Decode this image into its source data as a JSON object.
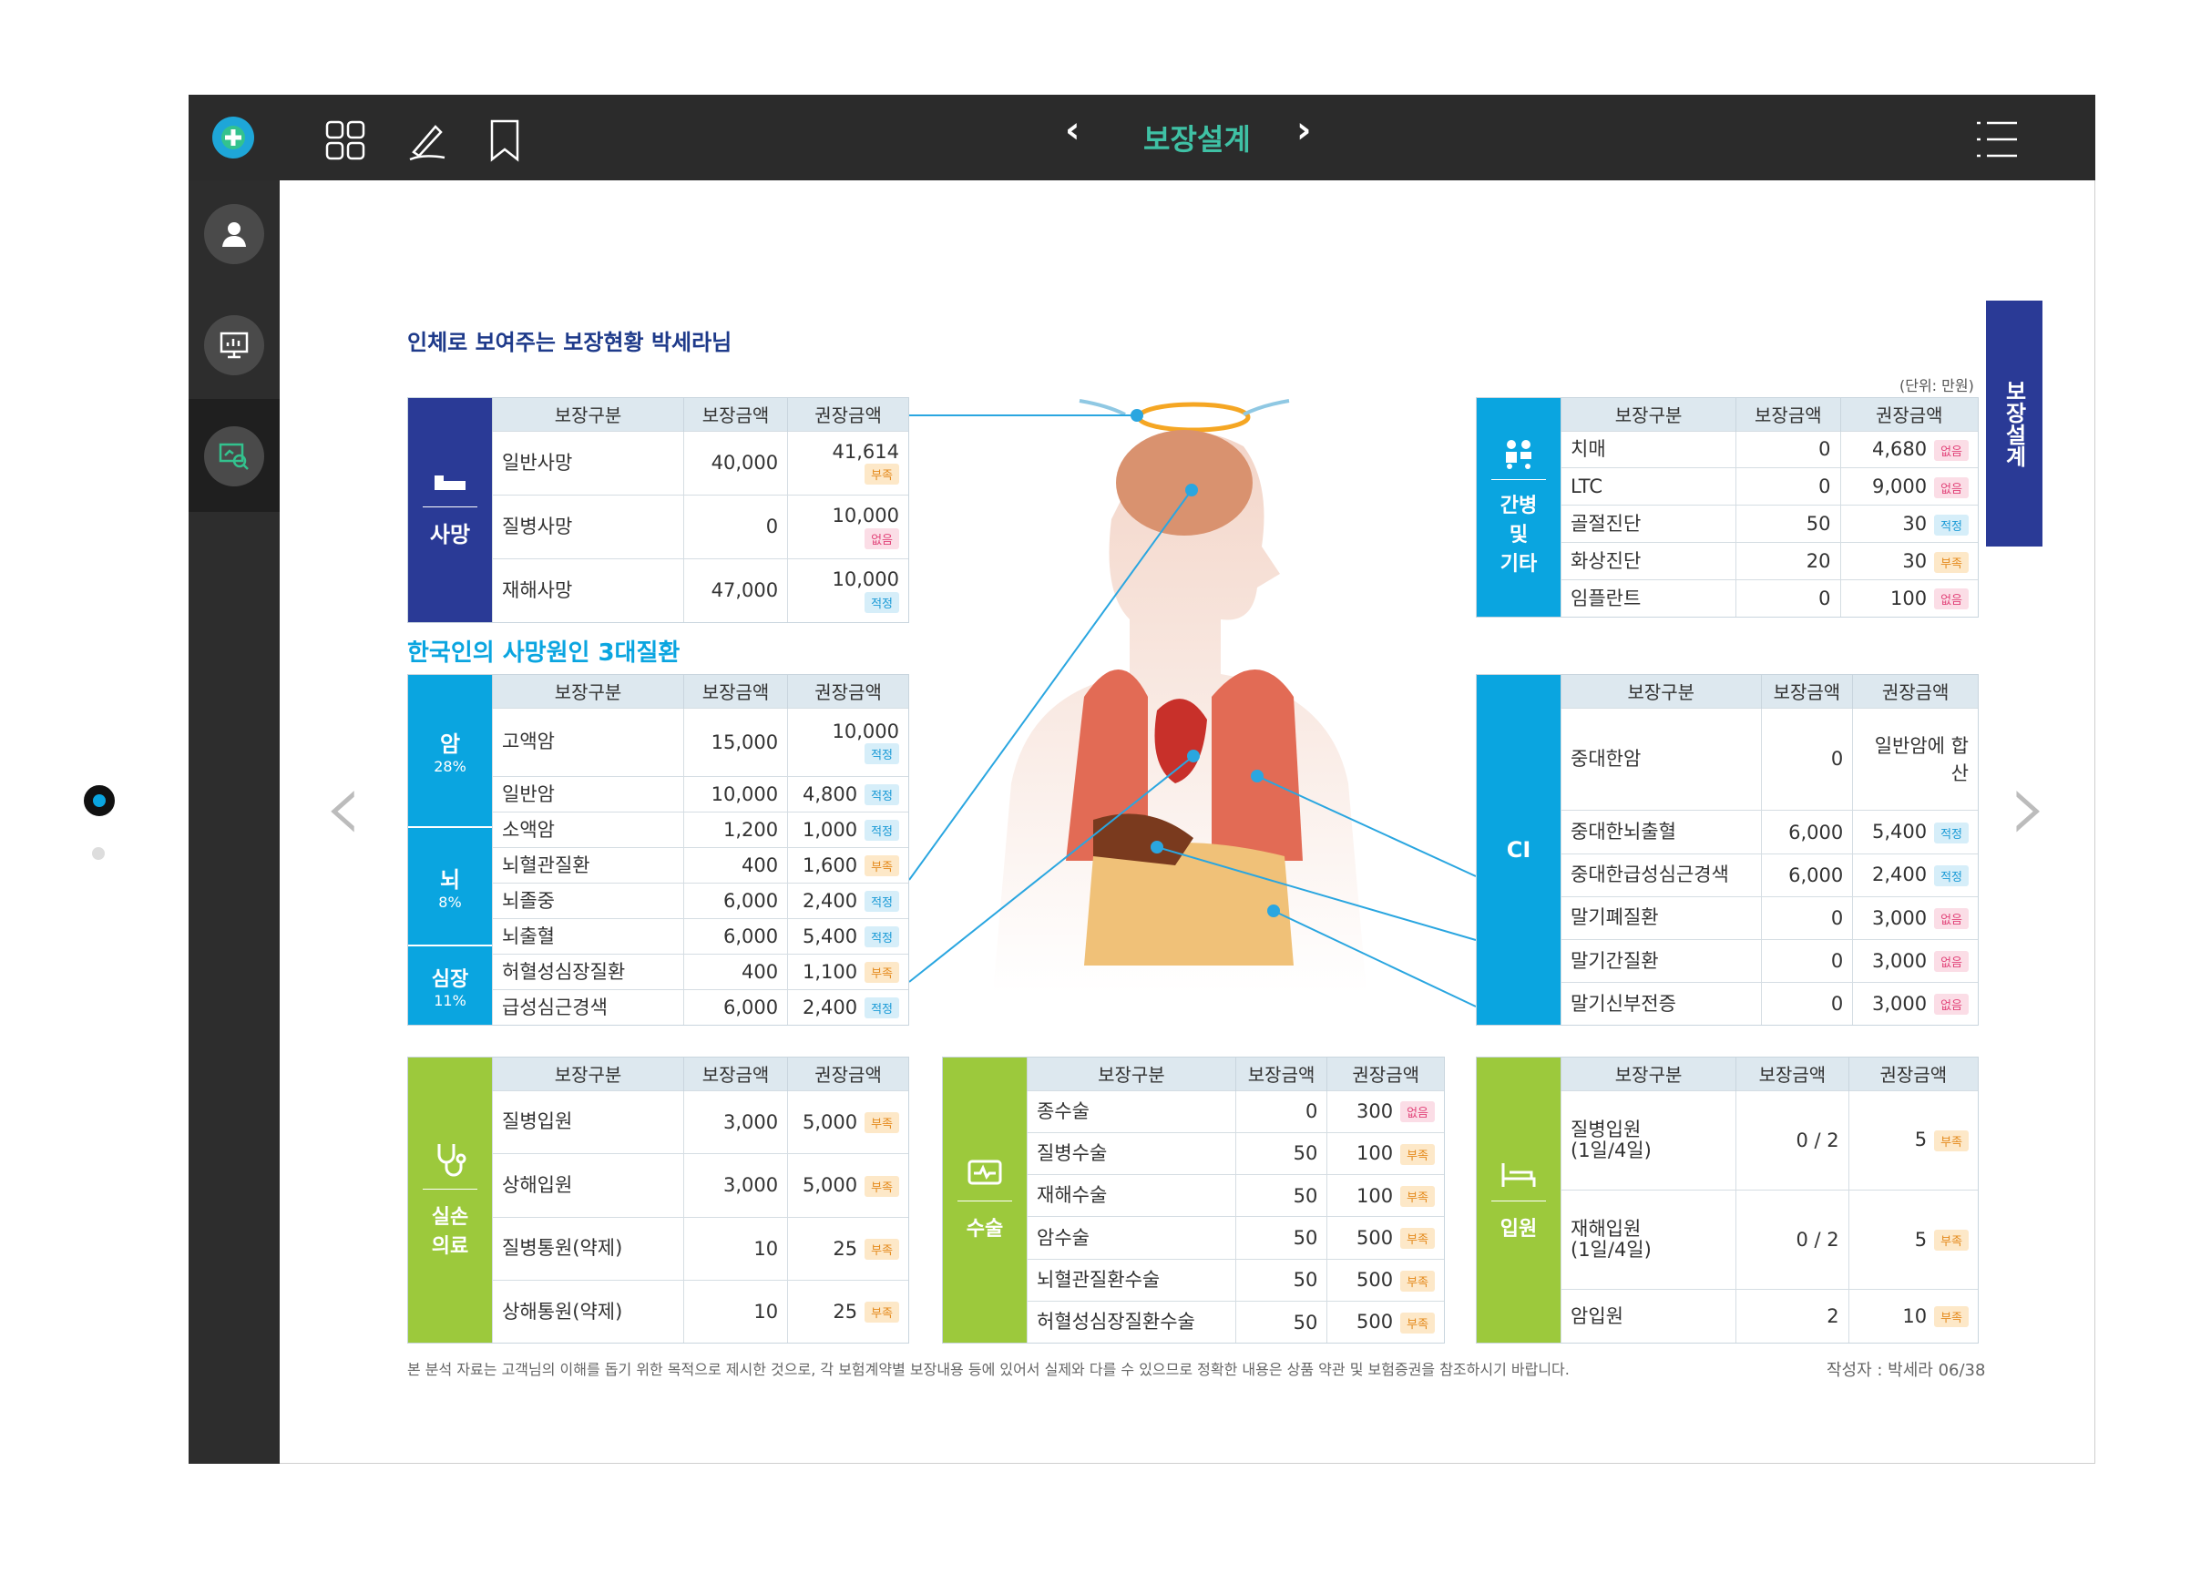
{
  "header": {
    "title": "보장설계"
  },
  "side_tab": "보장설계",
  "report": {
    "title": "인체로 보여주는 보장현황 박세라님",
    "section_title": "한국인의 사망원인 3대질환",
    "unit": "(단위: 만원)",
    "footnote": "본 분석 자료는 고객님의 이해를 돕기 위한 목적으로 제시한 것으로, 각 보험계약별 보장내용 등에 있어서 실제와 다를 수 있으므로 정확한 내용은 상품 약관 및 보험증권을 참조하시기 바랍니다.",
    "author": "작성자 : 박세라 06/38",
    "columns": [
      "보장구분",
      "보장금액",
      "권장금액"
    ],
    "badges": {
      "ok": "적정",
      "lack": "부족",
      "none": "없음"
    }
  },
  "death": {
    "label": "사망",
    "rows": [
      {
        "name": "일반사망",
        "amount": "40,000",
        "rec": "41,614",
        "badge": "부족"
      },
      {
        "name": "질병사망",
        "amount": "0",
        "rec": "10,000",
        "badge": "없음"
      },
      {
        "name": "재해사망",
        "amount": "47,000",
        "rec": "10,000",
        "badge": "적정"
      }
    ]
  },
  "disease": {
    "groups": [
      {
        "label": "암",
        "pct": "28%"
      },
      {
        "label": "뇌",
        "pct": "8%"
      },
      {
        "label": "심장",
        "pct": "11%"
      }
    ],
    "rows": [
      {
        "name": "고액암",
        "amount": "15,000",
        "rec": "10,000",
        "badge": "적정"
      },
      {
        "name": "일반암",
        "amount": "10,000",
        "rec": "4,800",
        "badge": "적정"
      },
      {
        "name": "소액암",
        "amount": "1,200",
        "rec": "1,000",
        "badge": "적정"
      },
      {
        "name": "뇌혈관질환",
        "amount": "400",
        "rec": "1,600",
        "badge": "부족"
      },
      {
        "name": "뇌졸중",
        "amount": "6,000",
        "rec": "2,400",
        "badge": "적정"
      },
      {
        "name": "뇌출혈",
        "amount": "6,000",
        "rec": "5,400",
        "badge": "적정"
      },
      {
        "name": "허혈성심장질환",
        "amount": "400",
        "rec": "1,100",
        "badge": "부족"
      },
      {
        "name": "급성심근경색",
        "amount": "6,000",
        "rec": "2,400",
        "badge": "적정"
      }
    ]
  },
  "care": {
    "label": "간병\n및\n기타",
    "rows": [
      {
        "name": "치매",
        "amount": "0",
        "rec": "4,680",
        "badge": "없음"
      },
      {
        "name": "LTC",
        "amount": "0",
        "rec": "9,000",
        "badge": "없음"
      },
      {
        "name": "골절진단",
        "amount": "50",
        "rec": "30",
        "badge": "적정"
      },
      {
        "name": "화상진단",
        "amount": "20",
        "rec": "30",
        "badge": "부족"
      },
      {
        "name": "임플란트",
        "amount": "0",
        "rec": "100",
        "badge": "없음"
      }
    ]
  },
  "ci": {
    "label": "CI",
    "rows": [
      {
        "name": "중대한암",
        "amount": "0",
        "rec": "일반암에 합산",
        "badge": ""
      },
      {
        "name": "중대한뇌출혈",
        "amount": "6,000",
        "rec": "5,400",
        "badge": "적정"
      },
      {
        "name": "중대한급성심근경색",
        "amount": "6,000",
        "rec": "2,400",
        "badge": "적정"
      },
      {
        "name": "말기폐질환",
        "amount": "0",
        "rec": "3,000",
        "badge": "없음"
      },
      {
        "name": "말기간질환",
        "amount": "0",
        "rec": "3,000",
        "badge": "없음"
      },
      {
        "name": "말기신부전증",
        "amount": "0",
        "rec": "3,000",
        "badge": "없음"
      }
    ]
  },
  "medical": {
    "label": "실손\n의료",
    "rows": [
      {
        "name": "질병입원",
        "amount": "3,000",
        "rec": "5,000",
        "badge": "부족"
      },
      {
        "name": "상해입원",
        "amount": "3,000",
        "rec": "5,000",
        "badge": "부족"
      },
      {
        "name": "질병통원(약제)",
        "amount": "10",
        "rec": "25",
        "badge": "부족"
      },
      {
        "name": "상해통원(약제)",
        "amount": "10",
        "rec": "25",
        "badge": "부족"
      }
    ]
  },
  "surgery": {
    "label": "수술",
    "rows": [
      {
        "name": "종수술",
        "amount": "0",
        "rec": "300",
        "badge": "없음"
      },
      {
        "name": "질병수술",
        "amount": "50",
        "rec": "100",
        "badge": "부족"
      },
      {
        "name": "재해수술",
        "amount": "50",
        "rec": "100",
        "badge": "부족"
      },
      {
        "name": "암수술",
        "amount": "50",
        "rec": "500",
        "badge": "부족"
      },
      {
        "name": "뇌혈관질환수술",
        "amount": "50",
        "rec": "500",
        "badge": "부족"
      },
      {
        "name": "허혈성심장질환수술",
        "amount": "50",
        "rec": "500",
        "badge": "부족"
      }
    ]
  },
  "hospital": {
    "label": "입원",
    "rows": [
      {
        "name": "질병입원\n(1일/4일)",
        "amount": "0 / 2",
        "rec": "5",
        "badge": "부족"
      },
      {
        "name": "재해입원\n(1일/4일)",
        "amount": "0 / 2",
        "rec": "5",
        "badge": "부족"
      },
      {
        "name": "암입원",
        "amount": "2",
        "rec": "10",
        "badge": "부족"
      }
    ]
  },
  "colors": {
    "navy": "#2a3a96",
    "blue": "#0aa5e0",
    "green": "#9cc93c",
    "teal": "#3fc1a5"
  },
  "icons": [
    "plus-logo-icon",
    "grid-icon",
    "pen-icon",
    "bookmark-icon",
    "list-icon",
    "user-icon",
    "presentation-icon",
    "analysis-icon",
    "bed-icon",
    "care-icon",
    "stethoscope-icon",
    "heart-monitor-icon",
    "hospital-bed-icon"
  ]
}
